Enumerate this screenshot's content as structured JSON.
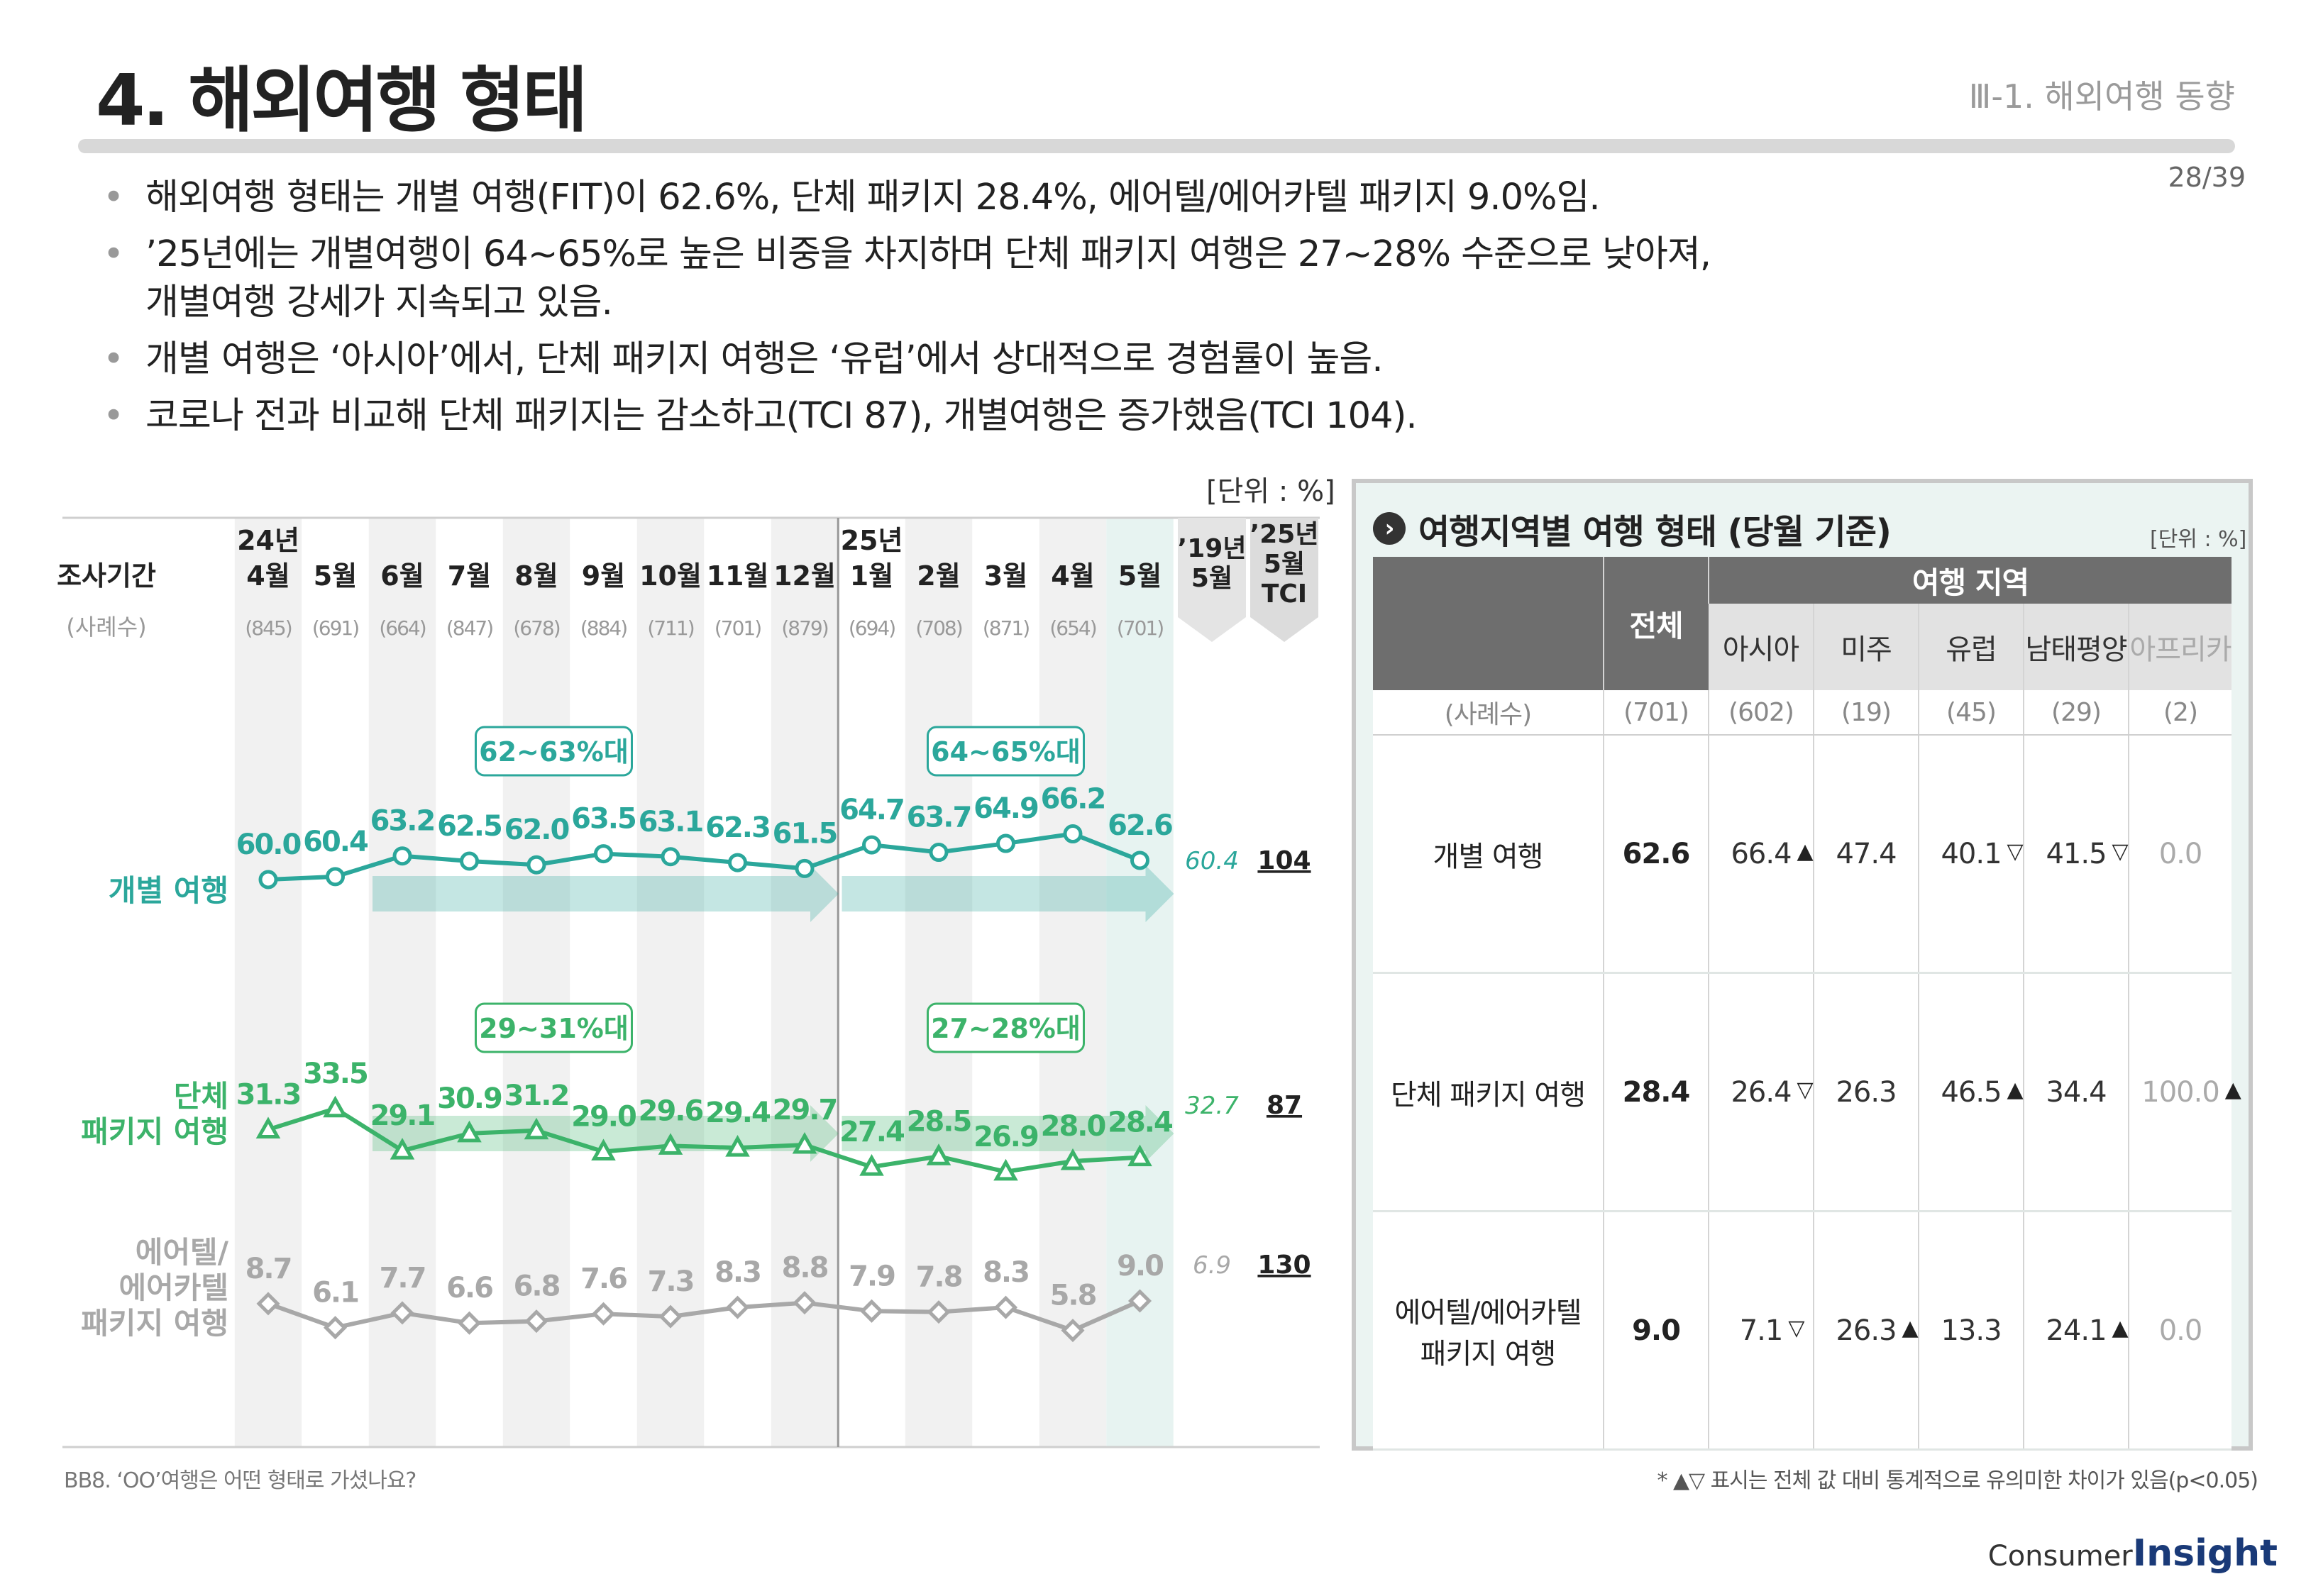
{
  "header": {
    "title": "4. 해외여행 형태",
    "section": "Ⅲ-1. 해외여행 동향",
    "page": "28/39"
  },
  "bullets": [
    {
      "text": "해외여행 형태는 개별 여행(FIT)이 62.6%, 단체 패키지 28.4%, 에어텔/에어카텔 패키지 9.0%임."
    },
    {
      "text": "’25년에는 개별여행이 64~65%로 높은 비중을 차지하며 단체 패키지 여행은 27~28% 수준으로 낮아져,",
      "text2": "개별여행 강세가 지속되고 있음."
    },
    {
      "text": "개별 여행은 ‘아시아’에서, 단체 패키지 여행은 ‘유럽’에서 상대적으로 경험률이 높음."
    },
    {
      "text": "코로나 전과 비교해 단체 패키지는 감소하고(TCI 87), 개별여행은 증가했음(TCI 104)."
    }
  ],
  "chart_data": {
    "type": "line",
    "unit_label": "[단위 : %]",
    "row_header": "조사기간",
    "count_header": "(사례수)",
    "year_labels": [
      {
        "index": 0,
        "text": "24년"
      },
      {
        "index": 9,
        "text": "25년"
      }
    ],
    "categories": [
      "4월",
      "5월",
      "6월",
      "7월",
      "8월",
      "9월",
      "10월",
      "11월",
      "12월",
      "1월",
      "2월",
      "3월",
      "4월",
      "5월"
    ],
    "counts": [
      "(845)",
      "(691)",
      "(664)",
      "(847)",
      "(678)",
      "(884)",
      "(711)",
      "(701)",
      "(879)",
      "(694)",
      "(708)",
      "(871)",
      "(654)",
      "(701)"
    ],
    "ref_header": [
      "’19년",
      "5월"
    ],
    "tci_header": [
      "’25년",
      "5월",
      "TCI"
    ],
    "series": [
      {
        "name": "개별 여행",
        "values": [
          60.0,
          60.4,
          63.2,
          62.5,
          62.0,
          63.5,
          63.1,
          62.3,
          61.5,
          64.7,
          63.7,
          64.9,
          66.2,
          62.6
        ],
        "ref_2019": "60.4",
        "tci": "104",
        "color": "#2ba79b",
        "marker": "circle"
      },
      {
        "name": "단체 패키지 여행",
        "values": [
          31.3,
          33.5,
          29.1,
          30.9,
          31.2,
          29.0,
          29.6,
          29.4,
          29.7,
          27.4,
          28.5,
          26.9,
          28.0,
          28.4
        ],
        "ref_2019": "32.7",
        "tci": "87",
        "color": "#3cb36a",
        "marker": "triangle"
      },
      {
        "name": "에어텔/에어카텔 패키지 여행",
        "values": [
          8.7,
          6.1,
          7.7,
          6.6,
          6.8,
          7.6,
          7.3,
          8.3,
          8.8,
          7.9,
          7.8,
          8.3,
          5.8,
          9.0
        ],
        "ref_2019": "6.9",
        "tci": "130",
        "color": "#a8a8a8",
        "marker": "diamond"
      }
    ],
    "range_labels": [
      {
        "series": 0,
        "from": 2,
        "to": 8,
        "text": "62~63%대"
      },
      {
        "series": 0,
        "from": 9,
        "to": 13,
        "text": "64~65%대"
      },
      {
        "series": 1,
        "from": 2,
        "to": 8,
        "text": "29~31%대"
      },
      {
        "series": 1,
        "from": 9,
        "to": 13,
        "text": "27~28%대"
      }
    ],
    "footnote": "BB8. ‘OO’여행은 어떤 형태로 가셨나요?"
  },
  "panel": {
    "title": "여행지역별 여행 형태 (당월 기준)",
    "unit": "[단위 : %]",
    "total_header": "전체",
    "region_header": "여행 지역",
    "regions": [
      "아시아",
      "미주",
      "유럽",
      "남태평양",
      "아프리카"
    ],
    "count_label": "(사례수)",
    "counts": [
      "(701)",
      "(602)",
      "(19)",
      "(45)",
      "(29)",
      "(2)"
    ],
    "rows": [
      {
        "label": "개별 여행",
        "total": "62.6",
        "values": [
          "66.4",
          "47.4",
          "40.1",
          "41.5",
          "0.0"
        ],
        "marks": [
          "▲",
          "",
          "▽",
          "▽",
          ""
        ]
      },
      {
        "label": "단체 패키지 여행",
        "total": "28.4",
        "values": [
          "26.4",
          "26.3",
          "46.5",
          "34.4",
          "100.0"
        ],
        "marks": [
          "▽",
          "",
          "▲",
          "",
          "▲"
        ]
      },
      {
        "label": "에어텔/에어카텔",
        "label2": "패키지 여행",
        "total": "9.0",
        "values": [
          "7.1",
          "26.3",
          "13.3",
          "24.1",
          "0.0"
        ],
        "marks": [
          "▽",
          "▲",
          "",
          "▲",
          ""
        ]
      }
    ],
    "note": "* ▲▽ 표시는 전체 값 대비 통계적으로 유의미한 차이가 있음(p<0.05)"
  },
  "logo": {
    "text1": "Consumer",
    "text2": "Insight"
  }
}
